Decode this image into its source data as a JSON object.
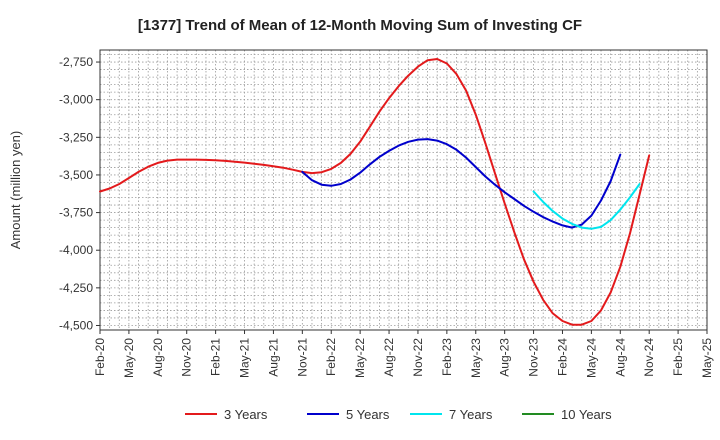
{
  "chart_data": {
    "type": "line",
    "title": "[1377]  Trend of Mean of 12-Month Moving Sum of Investing CF",
    "xlabel": "",
    "ylabel": "Amount (million yen)",
    "ylim": [
      -4530,
      -2670
    ],
    "yticks": [
      -2750,
      -3000,
      -3250,
      -3500,
      -3750,
      -4000,
      -4250,
      -4500
    ],
    "ytick_labels": [
      "-2,750",
      "-3,000",
      "-3,250",
      "-3,500",
      "-3,750",
      "-4,000",
      "-4,250",
      "-4,500"
    ],
    "xlim": [
      0,
      63
    ],
    "xticks": [
      0,
      3,
      6,
      9,
      12,
      15,
      18,
      21,
      24,
      27,
      30,
      33,
      36,
      39,
      42,
      45,
      48,
      51,
      54,
      57,
      60,
      63
    ],
    "xtick_labels": [
      "Feb-20",
      "May-20",
      "Aug-20",
      "Nov-20",
      "Feb-21",
      "May-21",
      "Aug-21",
      "Nov-21",
      "Feb-22",
      "May-22",
      "Aug-22",
      "Nov-22",
      "Feb-23",
      "May-23",
      "Aug-23",
      "Nov-23",
      "Feb-24",
      "May-24",
      "Aug-24",
      "Nov-24",
      "Feb-25",
      "May-25"
    ],
    "grid": true,
    "legend_position": "bottom",
    "series": [
      {
        "name": "3 Years",
        "color": "#e31a1c",
        "points": [
          [
            0,
            -3610
          ],
          [
            1,
            -3590
          ],
          [
            2,
            -3560
          ],
          [
            3,
            -3520
          ],
          [
            4,
            -3480
          ],
          [
            5,
            -3445
          ],
          [
            6,
            -3420
          ],
          [
            7,
            -3405
          ],
          [
            8,
            -3398
          ],
          [
            9,
            -3398
          ],
          [
            10,
            -3398
          ],
          [
            11,
            -3400
          ],
          [
            12,
            -3403
          ],
          [
            13,
            -3407
          ],
          [
            14,
            -3412
          ],
          [
            15,
            -3418
          ],
          [
            16,
            -3425
          ],
          [
            17,
            -3433
          ],
          [
            18,
            -3442
          ],
          [
            19,
            -3452
          ],
          [
            20,
            -3465
          ],
          [
            21,
            -3480
          ],
          [
            22,
            -3488
          ],
          [
            23,
            -3482
          ],
          [
            24,
            -3460
          ],
          [
            25,
            -3420
          ],
          [
            26,
            -3360
          ],
          [
            27,
            -3280
          ],
          [
            28,
            -3180
          ],
          [
            29,
            -3080
          ],
          [
            30,
            -2990
          ],
          [
            31,
            -2910
          ],
          [
            32,
            -2840
          ],
          [
            33,
            -2780
          ],
          [
            34,
            -2738
          ],
          [
            35,
            -2730
          ],
          [
            36,
            -2760
          ],
          [
            37,
            -2830
          ],
          [
            38,
            -2940
          ],
          [
            39,
            -3100
          ],
          [
            40,
            -3290
          ],
          [
            41,
            -3490
          ],
          [
            42,
            -3690
          ],
          [
            43,
            -3880
          ],
          [
            44,
            -4060
          ],
          [
            45,
            -4210
          ],
          [
            46,
            -4330
          ],
          [
            47,
            -4420
          ],
          [
            48,
            -4470
          ],
          [
            49,
            -4495
          ],
          [
            50,
            -4495
          ],
          [
            51,
            -4470
          ],
          [
            52,
            -4400
          ],
          [
            53,
            -4280
          ],
          [
            54,
            -4110
          ],
          [
            55,
            -3890
          ],
          [
            56,
            -3630
          ],
          [
            57,
            -3370
          ]
        ]
      },
      {
        "name": "5 Years",
        "color": "#0000cc",
        "points": [
          [
            21,
            -3480
          ],
          [
            22,
            -3535
          ],
          [
            23,
            -3565
          ],
          [
            24,
            -3572
          ],
          [
            25,
            -3560
          ],
          [
            26,
            -3530
          ],
          [
            27,
            -3485
          ],
          [
            28,
            -3430
          ],
          [
            29,
            -3380
          ],
          [
            30,
            -3340
          ],
          [
            31,
            -3305
          ],
          [
            32,
            -3280
          ],
          [
            33,
            -3265
          ],
          [
            34,
            -3262
          ],
          [
            35,
            -3272
          ],
          [
            36,
            -3296
          ],
          [
            37,
            -3333
          ],
          [
            38,
            -3385
          ],
          [
            39,
            -3448
          ],
          [
            40,
            -3510
          ],
          [
            41,
            -3565
          ],
          [
            42,
            -3615
          ],
          [
            43,
            -3660
          ],
          [
            44,
            -3705
          ],
          [
            45,
            -3745
          ],
          [
            46,
            -3780
          ],
          [
            47,
            -3810
          ],
          [
            48,
            -3835
          ],
          [
            49,
            -3850
          ],
          [
            50,
            -3830
          ],
          [
            51,
            -3770
          ],
          [
            52,
            -3670
          ],
          [
            53,
            -3540
          ],
          [
            54,
            -3365
          ]
        ]
      },
      {
        "name": "7 Years",
        "color": "#00e5ee",
        "points": [
          [
            45,
            -3610
          ],
          [
            46,
            -3680
          ],
          [
            47,
            -3740
          ],
          [
            48,
            -3790
          ],
          [
            49,
            -3825
          ],
          [
            50,
            -3850
          ],
          [
            51,
            -3858
          ],
          [
            52,
            -3845
          ],
          [
            53,
            -3800
          ],
          [
            54,
            -3730
          ],
          [
            55,
            -3650
          ],
          [
            56,
            -3560
          ]
        ]
      },
      {
        "name": "10 Years",
        "color": "#228b22",
        "points": []
      }
    ]
  }
}
